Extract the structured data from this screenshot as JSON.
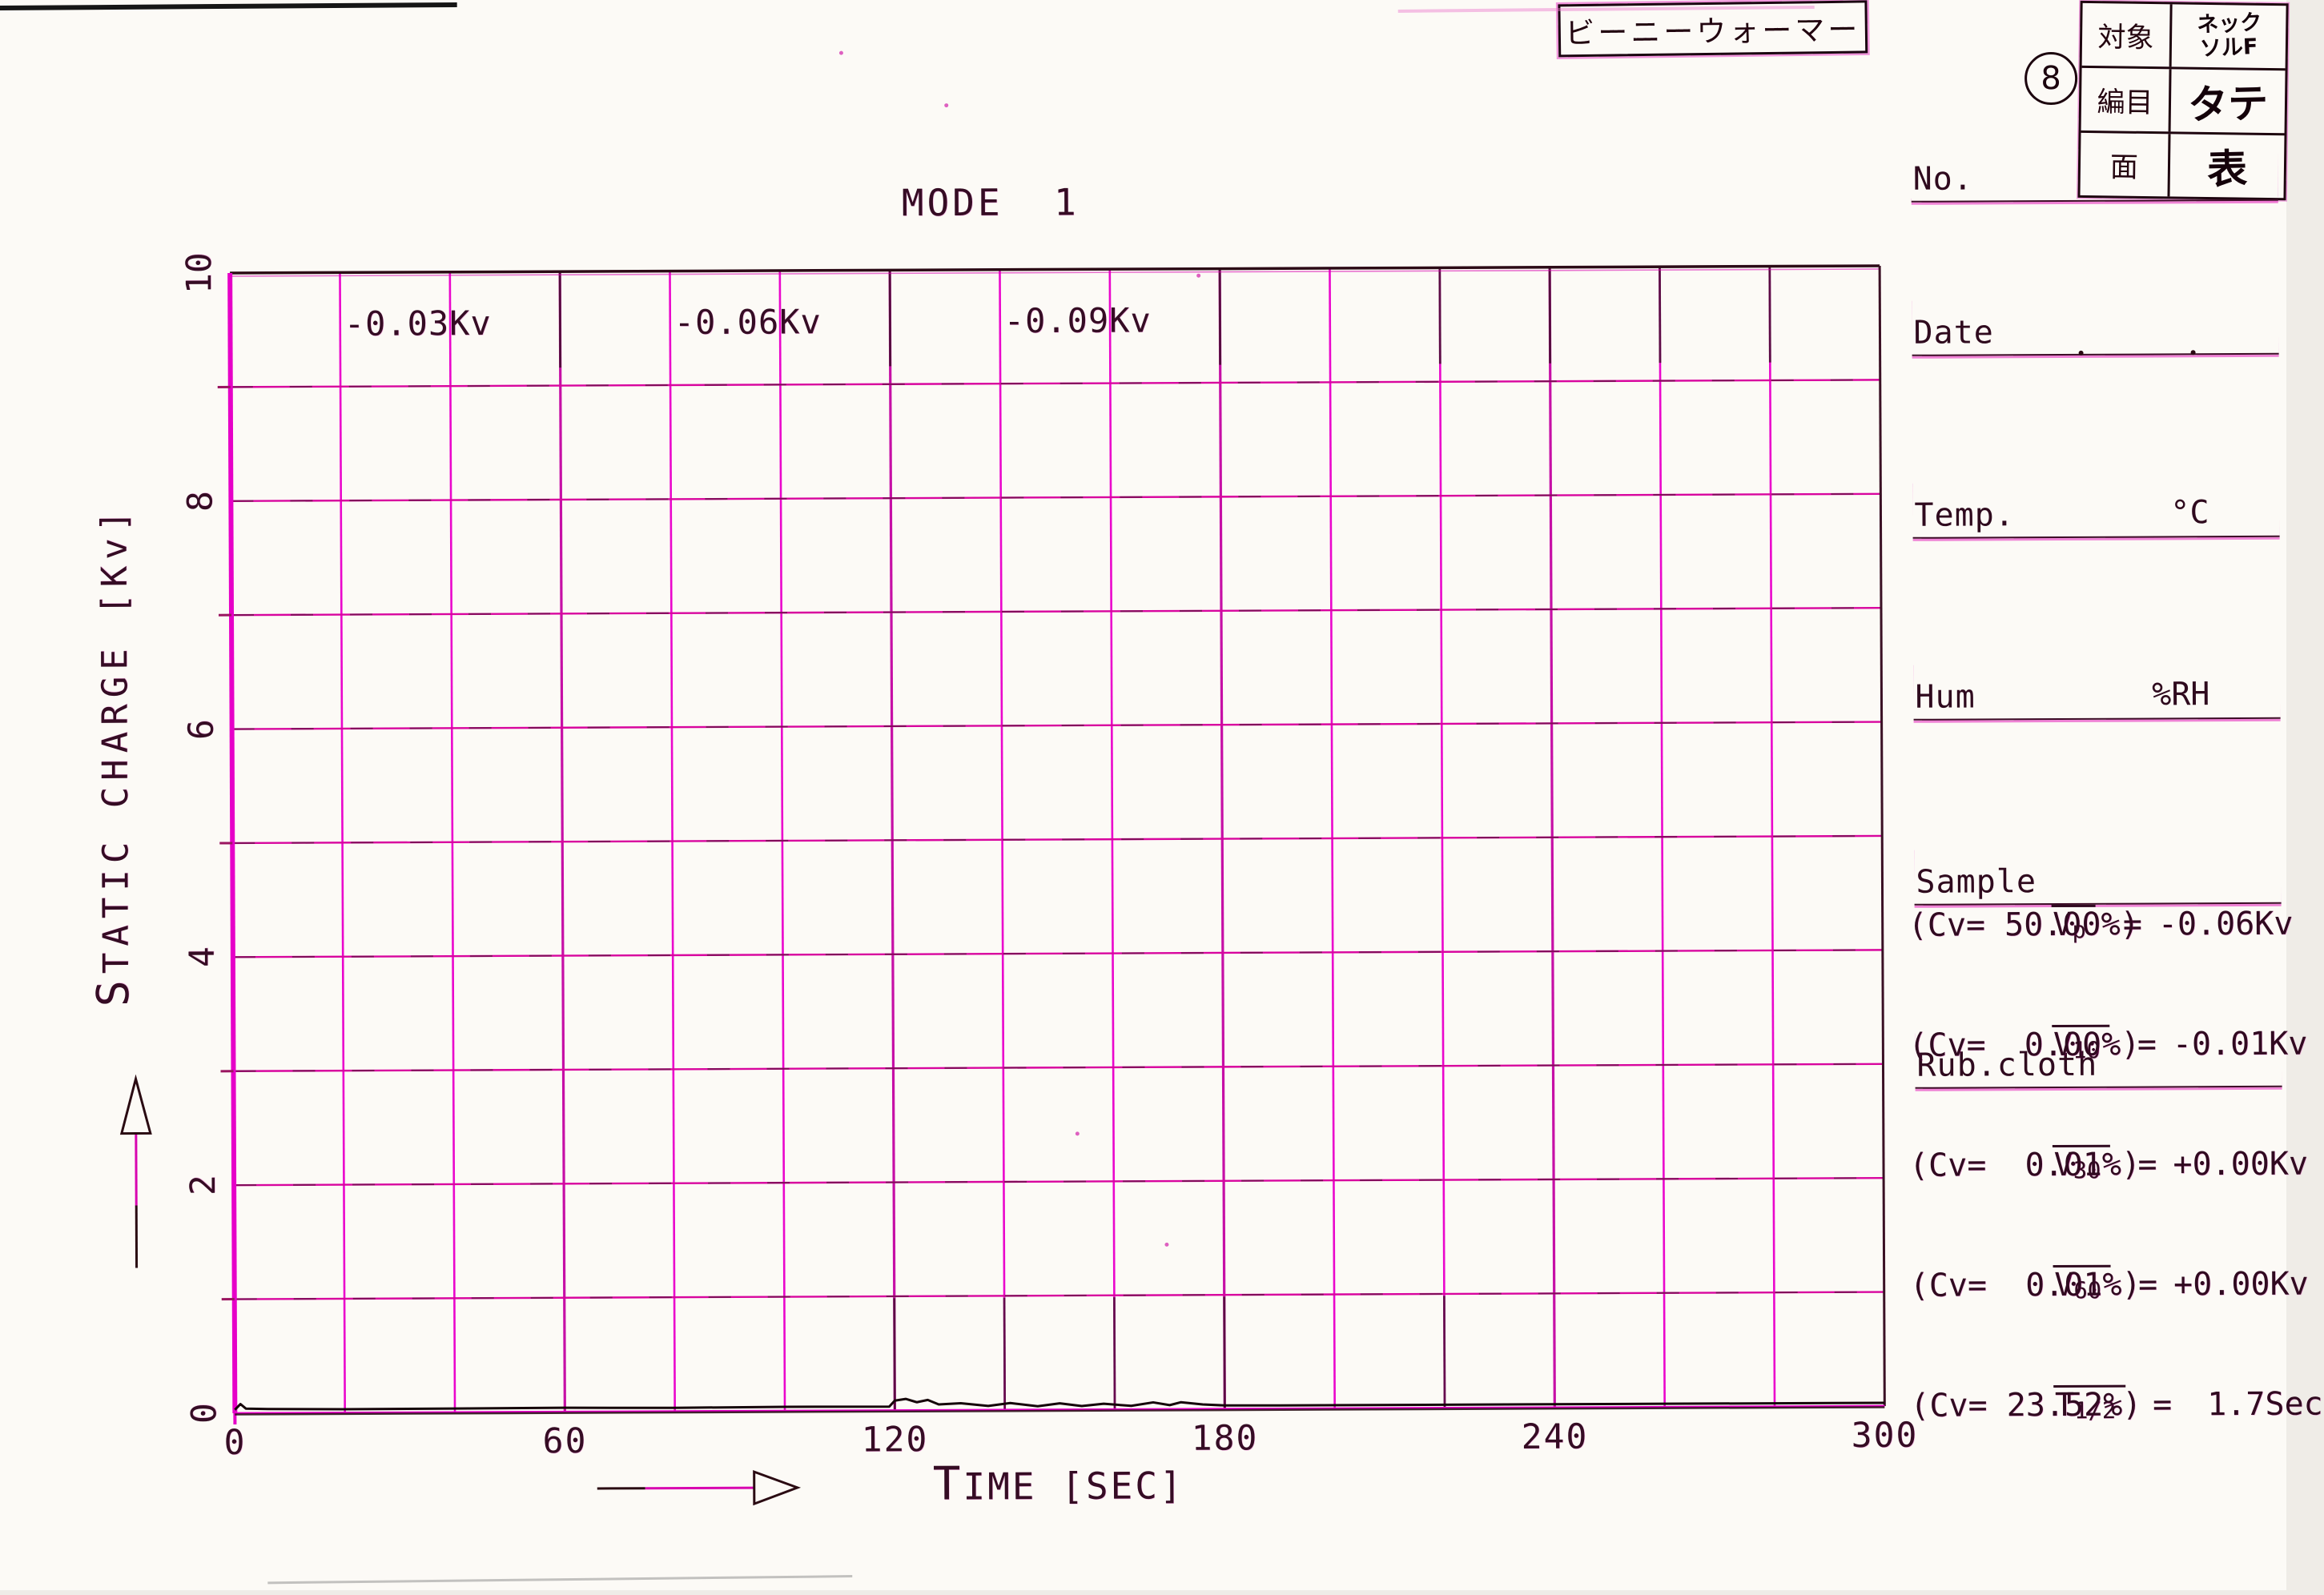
{
  "header": {
    "product_label": "ビーニーウォーマー",
    "sheet_number": "8",
    "info_table": {
      "rows": [
        {
          "label": "対象",
          "value_line1": "ネック",
          "value_line2": "ソルF"
        },
        {
          "label": "編目",
          "value_line1": "タテ",
          "value_line2": ""
        },
        {
          "label": "面",
          "value_line1": "表",
          "value_line2": ""
        }
      ]
    },
    "fields": [
      {
        "label": "No.",
        "suffix": ""
      },
      {
        "label": "Date",
        "suffix": ""
      },
      {
        "label": "Temp.",
        "suffix": "°C"
      },
      {
        "label": "Hum",
        "suffix": "%RH"
      },
      {
        "label": "Sample",
        "suffix": ""
      },
      {
        "label": "Rub.cloth",
        "suffix": ""
      }
    ]
  },
  "chart": {
    "title": "MODE  1",
    "x_axis": {
      "title": "TIME [SEC]"
    },
    "y_axis": {
      "title": "STATIC CHARGE [Kv]"
    }
  },
  "results": {
    "items": [
      {
        "base": "V",
        "sub": "p",
        "eq": "=",
        "value": "-0.06Kv"
      },
      {
        "text": "(Cv= 50.00%)"
      },
      {
        "base": "V",
        "sub": "10",
        "eq": "=",
        "value": "-0.01Kv"
      },
      {
        "text": "(Cv=  0.00%)"
      },
      {
        "base": "V",
        "sub": "30",
        "eq": "=",
        "value": "+0.00Kv"
      },
      {
        "text": "(Cv=  0.01%)"
      },
      {
        "base": "V",
        "sub": "60",
        "eq": "=",
        "value": "+0.00Kv"
      },
      {
        "text": "(Cv=  0.01%)"
      },
      {
        "base": "T",
        "sub": "1/2",
        "eq": "=",
        "value": " 1.7Sec"
      },
      {
        "text": "(Cv= 23.52%)"
      }
    ]
  },
  "chart_data": {
    "type": "line",
    "title": "MODE 1",
    "xlabel": "TIME [SEC]",
    "ylabel": "STATIC CHARGE [Kv]",
    "xlim": [
      0,
      300
    ],
    "ylim": [
      0,
      10
    ],
    "x_ticks": [
      0,
      60,
      120,
      180,
      240,
      300
    ],
    "y_ticks": [
      0,
      2,
      4,
      6,
      8,
      10
    ],
    "x_minor_step": 20,
    "y_minor_step": 1,
    "grid": true,
    "legend": "none",
    "series": [
      {
        "name": "static charge trace",
        "color": "#150509",
        "points": [
          [
            0,
            0.03
          ],
          [
            1,
            0.08
          ],
          [
            2,
            0.04
          ],
          [
            6,
            0.035
          ],
          [
            20,
            0.03
          ],
          [
            40,
            0.032
          ],
          [
            60,
            0.035
          ],
          [
            80,
            0.03
          ],
          [
            100,
            0.035
          ],
          [
            119,
            0.032
          ],
          [
            120,
            0.085
          ],
          [
            122,
            0.1
          ],
          [
            124,
            0.07
          ],
          [
            126,
            0.09
          ],
          [
            128,
            0.05
          ],
          [
            132,
            0.06
          ],
          [
            137,
            0.035
          ],
          [
            141,
            0.06
          ],
          [
            146,
            0.03
          ],
          [
            150,
            0.055
          ],
          [
            154,
            0.03
          ],
          [
            158,
            0.05
          ],
          [
            163,
            0.03
          ],
          [
            167,
            0.06
          ],
          [
            170,
            0.035
          ],
          [
            172,
            0.06
          ],
          [
            176,
            0.04
          ],
          [
            180,
            0.03
          ],
          [
            190,
            0.028
          ],
          [
            220,
            0.028
          ],
          [
            260,
            0.028
          ],
          [
            300,
            0.028
          ]
        ]
      }
    ],
    "annotations": [
      {
        "text": "-0.03Kv",
        "t": 20,
        "kv": 9.55
      },
      {
        "text": "-0.06Kv",
        "t": 80,
        "kv": 9.55
      },
      {
        "text": "-0.09Kv",
        "t": 140,
        "kv": 9.55
      }
    ]
  }
}
